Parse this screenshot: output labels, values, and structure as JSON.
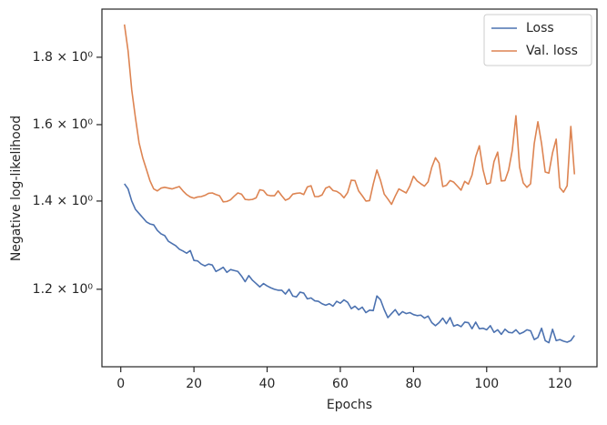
{
  "chart_data": {
    "type": "line",
    "xlabel": "Epochs",
    "ylabel": "Negative log-likelihood",
    "x": [
      1,
      2,
      3,
      4,
      5,
      6,
      7,
      8,
      9,
      10,
      11,
      12,
      13,
      14,
      15,
      16,
      17,
      18,
      19,
      20,
      21,
      22,
      23,
      24,
      25,
      26,
      27,
      28,
      29,
      30,
      31,
      32,
      33,
      34,
      35,
      36,
      37,
      38,
      39,
      40,
      41,
      42,
      43,
      44,
      45,
      46,
      47,
      48,
      49,
      50,
      51,
      52,
      53,
      54,
      55,
      56,
      57,
      58,
      59,
      60,
      61,
      62,
      63,
      64,
      65,
      66,
      67,
      68,
      69,
      70,
      71,
      72,
      73,
      74,
      75,
      76,
      77,
      78,
      79,
      80,
      81,
      82,
      83,
      84,
      85,
      86,
      87,
      88,
      89,
      90,
      91,
      92,
      93,
      94,
      95,
      96,
      97,
      98,
      99,
      100,
      101,
      102,
      103,
      104,
      105,
      106,
      107,
      108,
      109,
      110,
      111,
      112,
      113,
      114,
      115,
      116,
      117,
      118,
      119,
      120,
      121,
      122,
      123,
      124
    ],
    "series": [
      {
        "name": "Loss",
        "color": "#4c72b0",
        "values": [
          1.443,
          1.43,
          1.4,
          1.38,
          1.37,
          1.36,
          1.35,
          1.345,
          1.343,
          1.33,
          1.322,
          1.318,
          1.305,
          1.3,
          1.295,
          1.287,
          1.283,
          1.278,
          1.284,
          1.262,
          1.261,
          1.254,
          1.25,
          1.254,
          1.252,
          1.238,
          1.242,
          1.247,
          1.236,
          1.242,
          1.24,
          1.238,
          1.228,
          1.216,
          1.229,
          1.219,
          1.212,
          1.205,
          1.212,
          1.207,
          1.203,
          1.2,
          1.198,
          1.198,
          1.19,
          1.2,
          1.186,
          1.184,
          1.194,
          1.192,
          1.18,
          1.182,
          1.176,
          1.175,
          1.17,
          1.167,
          1.17,
          1.165,
          1.175,
          1.171,
          1.178,
          1.173,
          1.16,
          1.165,
          1.158,
          1.163,
          1.152,
          1.157,
          1.156,
          1.186,
          1.178,
          1.158,
          1.142,
          1.15,
          1.158,
          1.147,
          1.154,
          1.15,
          1.152,
          1.148,
          1.146,
          1.147,
          1.141,
          1.145,
          1.132,
          1.126,
          1.132,
          1.141,
          1.13,
          1.142,
          1.125,
          1.128,
          1.124,
          1.133,
          1.132,
          1.12,
          1.133,
          1.12,
          1.121,
          1.118,
          1.126,
          1.113,
          1.118,
          1.109,
          1.119,
          1.113,
          1.112,
          1.118,
          1.11,
          1.113,
          1.118,
          1.116,
          1.099,
          1.103,
          1.121,
          1.097,
          1.093,
          1.119,
          1.097,
          1.099,
          1.096,
          1.094,
          1.097,
          1.107
        ]
      },
      {
        "name": "Val. loss",
        "color": "#dd8452",
        "values": [
          1.906,
          1.82,
          1.7,
          1.62,
          1.55,
          1.51,
          1.48,
          1.45,
          1.43,
          1.425,
          1.432,
          1.434,
          1.432,
          1.43,
          1.433,
          1.436,
          1.425,
          1.416,
          1.41,
          1.407,
          1.41,
          1.411,
          1.414,
          1.419,
          1.42,
          1.416,
          1.413,
          1.398,
          1.399,
          1.403,
          1.412,
          1.42,
          1.417,
          1.404,
          1.403,
          1.404,
          1.408,
          1.428,
          1.426,
          1.415,
          1.413,
          1.413,
          1.425,
          1.413,
          1.402,
          1.406,
          1.417,
          1.419,
          1.42,
          1.416,
          1.435,
          1.438,
          1.411,
          1.411,
          1.415,
          1.432,
          1.436,
          1.426,
          1.424,
          1.418,
          1.408,
          1.421,
          1.452,
          1.451,
          1.425,
          1.413,
          1.4,
          1.401,
          1.442,
          1.478,
          1.451,
          1.417,
          1.405,
          1.392,
          1.412,
          1.43,
          1.425,
          1.42,
          1.437,
          1.462,
          1.45,
          1.443,
          1.437,
          1.448,
          1.485,
          1.51,
          1.496,
          1.436,
          1.439,
          1.451,
          1.447,
          1.437,
          1.427,
          1.449,
          1.442,
          1.465,
          1.513,
          1.542,
          1.479,
          1.442,
          1.445,
          1.5,
          1.525,
          1.45,
          1.451,
          1.478,
          1.53,
          1.625,
          1.485,
          1.445,
          1.434,
          1.443,
          1.548,
          1.608,
          1.548,
          1.473,
          1.47,
          1.523,
          1.56,
          1.433,
          1.422,
          1.438,
          1.595,
          1.467
        ]
      }
    ],
    "xlim": [
      -5.15,
      130.15
    ],
    "xticks": [
      0,
      20,
      40,
      60,
      80,
      100,
      120
    ],
    "ylim": [
      1.048,
      1.958
    ],
    "ylog": true,
    "yticks": [
      {
        "value": 1.2,
        "label": "1.2 × 10⁰"
      },
      {
        "value": 1.4,
        "label": "1.4 × 10⁰"
      },
      {
        "value": 1.6,
        "label": "1.6 × 10⁰"
      },
      {
        "value": 1.8,
        "label": "1.8 × 10⁰"
      }
    ],
    "legend": "upper right"
  }
}
